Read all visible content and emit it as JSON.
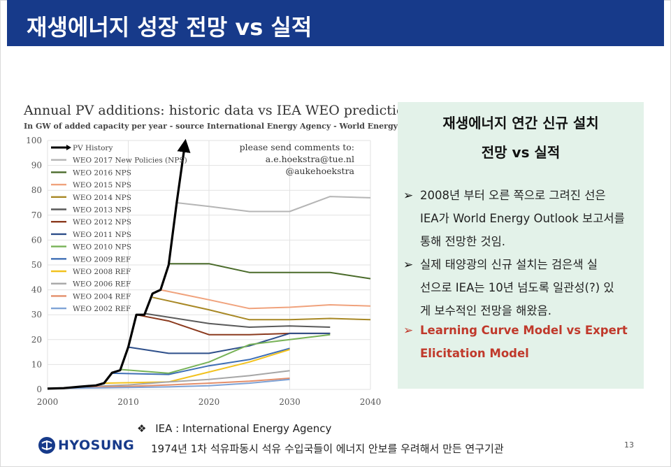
{
  "header": {
    "title": "재생에너지 성장 전망 vs 실적"
  },
  "chart_data": {
    "type": "line",
    "title": "Annual PV additions: historic data vs IEA WEO predictions",
    "subtitle": "In GW of added capacity per year - source International Energy Agency - World Energy Outlook",
    "xlabel": "",
    "ylabel": "",
    "xlim": [
      2000,
      2040
    ],
    "ylim": [
      0,
      100
    ],
    "x_ticks": [
      2000,
      2010,
      2020,
      2030,
      2040
    ],
    "y_ticks": [
      0,
      10,
      20,
      30,
      40,
      50,
      60,
      70,
      80,
      90,
      100
    ],
    "grid": true,
    "legend_position": "top-left",
    "annotation": [
      "please send comments to:",
      "a.e.hoekstra@tue.nl",
      "@aukehoekstra"
    ],
    "series": [
      {
        "name": "PV History",
        "color": "#000000",
        "width": 3.2,
        "arrow": true,
        "points": [
          [
            2000,
            0.3
          ],
          [
            2002,
            0.5
          ],
          [
            2004,
            1.1
          ],
          [
            2006,
            1.6
          ],
          [
            2007,
            2.5
          ],
          [
            2008,
            6.7
          ],
          [
            2009,
            7.7
          ],
          [
            2010,
            17
          ],
          [
            2011,
            30
          ],
          [
            2012,
            30
          ],
          [
            2013,
            38.5
          ],
          [
            2014,
            40
          ],
          [
            2015,
            50
          ],
          [
            2016,
            75
          ],
          [
            2017,
            98
          ]
        ]
      },
      {
        "name": "WEO 2017 New Policies (NPS)",
        "color": "#b5b5b5",
        "width": 2,
        "points": [
          [
            2016,
            75
          ],
          [
            2020,
            73.5
          ],
          [
            2025,
            71.5
          ],
          [
            2030,
            71.5
          ],
          [
            2035,
            77.5
          ],
          [
            2040,
            77
          ]
        ]
      },
      {
        "name": "WEO 2016 NPS",
        "color": "#4a6b2a",
        "width": 2,
        "points": [
          [
            2015,
            50.5
          ],
          [
            2020,
            50.5
          ],
          [
            2025,
            47
          ],
          [
            2030,
            47
          ],
          [
            2035,
            47
          ],
          [
            2040,
            44.5
          ]
        ]
      },
      {
        "name": "WEO 2015 NPS",
        "color": "#f0a27c",
        "width": 2,
        "points": [
          [
            2014,
            40
          ],
          [
            2020,
            36
          ],
          [
            2025,
            32.5
          ],
          [
            2030,
            33
          ],
          [
            2035,
            34
          ],
          [
            2040,
            33.5
          ]
        ]
      },
      {
        "name": "WEO 2014 NPS",
        "color": "#a88825",
        "width": 2,
        "points": [
          [
            2013,
            37
          ],
          [
            2020,
            32
          ],
          [
            2025,
            28
          ],
          [
            2030,
            28
          ],
          [
            2035,
            28.5
          ],
          [
            2040,
            28
          ]
        ]
      },
      {
        "name": "WEO 2013 NPS",
        "color": "#5a5a5a",
        "width": 2,
        "points": [
          [
            2012,
            30.5
          ],
          [
            2020,
            26.5
          ],
          [
            2025,
            25
          ],
          [
            2030,
            25.5
          ],
          [
            2035,
            25
          ]
        ]
      },
      {
        "name": "WEO 2012 NPS",
        "color": "#8b3a1e",
        "width": 2,
        "points": [
          [
            2011,
            30
          ],
          [
            2015,
            27.5
          ],
          [
            2020,
            22
          ],
          [
            2025,
            22
          ],
          [
            2030,
            22.5
          ],
          [
            2035,
            22.5
          ]
        ]
      },
      {
        "name": "WEO 2011 NPS",
        "color": "#2e4f8a",
        "width": 2,
        "points": [
          [
            2010,
            17
          ],
          [
            2015,
            14.5
          ],
          [
            2020,
            14.5
          ],
          [
            2025,
            17.5
          ],
          [
            2030,
            22.5
          ],
          [
            2035,
            22.5
          ]
        ]
      },
      {
        "name": "WEO 2010 NPS",
        "color": "#77b257",
        "width": 2,
        "points": [
          [
            2009,
            8
          ],
          [
            2015,
            6.5
          ],
          [
            2020,
            11
          ],
          [
            2025,
            18
          ],
          [
            2030,
            20
          ],
          [
            2035,
            22
          ]
        ]
      },
      {
        "name": "WEO 2009 REF",
        "color": "#3f6fb5",
        "width": 2,
        "points": [
          [
            2008,
            6.5
          ],
          [
            2015,
            6
          ],
          [
            2020,
            9.5
          ],
          [
            2025,
            12
          ],
          [
            2030,
            16.5
          ]
        ]
      },
      {
        "name": "WEO 2008 REF",
        "color": "#f2c21f",
        "width": 2,
        "points": [
          [
            2007,
            2.5
          ],
          [
            2015,
            3
          ],
          [
            2020,
            7
          ],
          [
            2025,
            11
          ],
          [
            2030,
            16
          ]
        ]
      },
      {
        "name": "WEO 2006 REF",
        "color": "#a6a6a6",
        "width": 2,
        "points": [
          [
            2005,
            1.2
          ],
          [
            2010,
            1.8
          ],
          [
            2015,
            3
          ],
          [
            2020,
            4
          ],
          [
            2025,
            5.5
          ],
          [
            2030,
            7.5
          ]
        ]
      },
      {
        "name": "WEO 2004 REF",
        "color": "#e38e6a",
        "width": 2,
        "points": [
          [
            2003,
            0.8
          ],
          [
            2010,
            1.2
          ],
          [
            2015,
            1.8
          ],
          [
            2020,
            2.5
          ],
          [
            2025,
            3.3
          ],
          [
            2030,
            4.5
          ]
        ]
      },
      {
        "name": "WEO 2002 REF",
        "color": "#7fa3d6",
        "width": 2,
        "points": [
          [
            2001,
            0.4
          ],
          [
            2010,
            0.8
          ],
          [
            2015,
            1
          ],
          [
            2020,
            1.5
          ],
          [
            2025,
            2.5
          ],
          [
            2030,
            4
          ]
        ]
      }
    ]
  },
  "panel": {
    "heading_line1": "재생에너지 연간 신규 설치",
    "heading_line2": "전망 vs 실적",
    "bullet_symbol": "➢",
    "bullet1": [
      "2008년 부터 오른 쪽으로 그려진 선은",
      "IEA가 World Energy Outlook 보고서를",
      "통해 전망한 것임."
    ],
    "bullet2": [
      "실제 태양광의 신규 설치는 검은색 실",
      "선으로 IEA는 10년 넘도록 일관성(?) 있",
      "게 보수적인 전망을 해왔음."
    ],
    "bullet3": [
      "Learning Curve Model vs Expert",
      "Elicitation Model"
    ],
    "accent_color": "#c0392b"
  },
  "footnote": {
    "symbol": "❖",
    "line1": "IEA : International Energy Agency",
    "line2": "1974년 1차 석유파동시 석유 수입국들이 에너지 안보를 우려해서 만든 연구기관"
  },
  "logo": {
    "text": "HYOSUNG"
  },
  "page_number": "13"
}
